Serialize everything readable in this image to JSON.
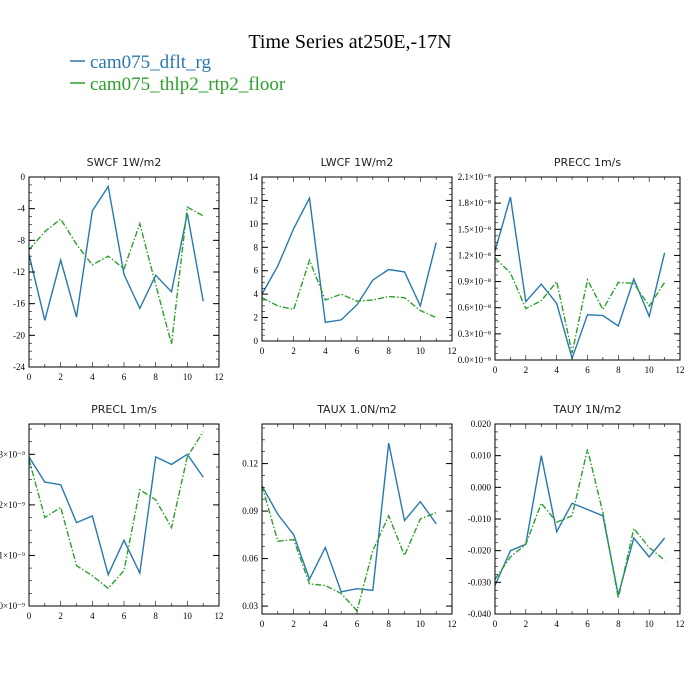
{
  "figure": {
    "title": "Time Series at250E,-17N",
    "legend": [
      {
        "label": "cam075_dflt_rg",
        "color": "#2878b0",
        "dash": "solid"
      },
      {
        "label": "cam075_thlp2_rtp2_floor",
        "color": "#2ca02c",
        "dash": "dashdot"
      }
    ]
  },
  "chart_data": [
    {
      "type": "line",
      "title": "SWCF   1W/m2",
      "xlim": [
        0,
        12
      ],
      "ylim": [
        -24,
        0
      ],
      "xticks": [
        "0",
        "2",
        "4",
        "6",
        "8",
        "10",
        "12"
      ],
      "yticks": [
        "-24",
        "-20",
        "-16",
        "-12",
        "-8",
        "-4",
        "0"
      ],
      "x": [
        0,
        1,
        2,
        3,
        4,
        5,
        6,
        7,
        8,
        9,
        10,
        11
      ],
      "series": [
        {
          "name": "cam075_dflt_rg",
          "values": [
            -9.8,
            -18.1,
            -10.5,
            -17.7,
            -4.3,
            -1.2,
            -12.3,
            -16.6,
            -12.4,
            -14.5,
            -4.6,
            -15.7
          ]
        },
        {
          "name": "cam075_thlp2_rtp2_floor",
          "values": [
            -9.2,
            -6.9,
            -5.3,
            -8.5,
            -11.1,
            -10.0,
            -11.6,
            -5.9,
            -13.6,
            -21.1,
            -3.8,
            -4.9
          ]
        }
      ]
    },
    {
      "type": "line",
      "title": "LWCF   1W/m2",
      "xlim": [
        0,
        12
      ],
      "ylim": [
        0,
        14
      ],
      "xticks": [
        "0",
        "2",
        "4",
        "6",
        "8",
        "10",
        "12"
      ],
      "yticks": [
        "0",
        "2",
        "4",
        "6",
        "8",
        "10",
        "12",
        "14"
      ],
      "x": [
        0,
        1,
        2,
        3,
        4,
        5,
        6,
        7,
        8,
        9,
        10,
        11
      ],
      "series": [
        {
          "name": "cam075_dflt_rg",
          "values": [
            4.0,
            6.4,
            9.6,
            12.2,
            1.6,
            1.8,
            3.1,
            5.2,
            6.1,
            5.9,
            3.0,
            8.4
          ]
        },
        {
          "name": "cam075_thlp2_rtp2_floor",
          "values": [
            3.7,
            3.0,
            2.7,
            6.9,
            3.5,
            4.0,
            3.4,
            3.5,
            3.8,
            3.7,
            2.6,
            2.0
          ]
        }
      ]
    },
    {
      "type": "line",
      "title": "PRECC   1m/s",
      "xlim": [
        0,
        12
      ],
      "ylim": [
        0,
        2.1e-08
      ],
      "xticks": [
        "0",
        "2",
        "4",
        "6",
        "8",
        "10",
        "12"
      ],
      "yticks": [
        "0.0×10⁻⁸",
        "0.3×10⁻⁸",
        "0.6×10⁻⁸",
        "0.9×10⁻⁸",
        "1.2×10⁻⁸",
        "1.5×10⁻⁸",
        "1.8×10⁻⁸",
        "2.1×10⁻⁸"
      ],
      "x": [
        0,
        1,
        2,
        3,
        4,
        5,
        6,
        7,
        8,
        9,
        10,
        11
      ],
      "series": [
        {
          "name": "cam075_dflt_rg",
          "values": [
            1.25e-08,
            1.87e-08,
            6.7e-09,
            8.7e-09,
            6.5e-09,
            2e-10,
            5.2e-09,
            5.1e-09,
            3.9e-09,
            9.3e-09,
            5e-09,
            1.23e-08
          ]
        },
        {
          "name": "cam075_thlp2_rtp2_floor",
          "values": [
            1.17e-08,
            1e-08,
            5.9e-09,
            6.8e-09,
            9e-09,
            8e-10,
            9.2e-09,
            5.8e-09,
            8.9e-09,
            8.8e-09,
            6.2e-09,
            8.9e-09
          ]
        }
      ]
    },
    {
      "type": "line",
      "title": "PRECL   1m/s",
      "xlim": [
        0,
        12
      ],
      "ylim": [
        0,
        3.6e-09
      ],
      "xticks": [
        "0",
        "2",
        "4",
        "6",
        "8",
        "10",
        "12"
      ],
      "yticks": [
        "0×10⁻⁹",
        "1×10⁻⁹",
        "2×10⁻⁹",
        "3×10⁻⁹"
      ],
      "x": [
        0,
        1,
        2,
        3,
        4,
        5,
        6,
        7,
        8,
        9,
        10,
        11
      ],
      "series": [
        {
          "name": "cam075_dflt_rg",
          "values": [
            2.95e-09,
            2.45e-09,
            2.4e-09,
            1.65e-09,
            1.78e-09,
            6.2e-10,
            1.3e-09,
            6.5e-10,
            2.95e-09,
            2.8e-09,
            3e-09,
            2.55e-09
          ]
        },
        {
          "name": "cam075_thlp2_rtp2_floor",
          "values": [
            2.9e-09,
            1.75e-09,
            1.95e-09,
            8e-10,
            6e-10,
            3.5e-10,
            7e-10,
            2.3e-09,
            2.1e-09,
            1.55e-09,
            2.95e-09,
            3.45e-09
          ]
        }
      ]
    },
    {
      "type": "line",
      "title": "TAUX   1.0N/m2",
      "xlim": [
        0,
        12
      ],
      "ylim": [
        0.025,
        0.145
      ],
      "xticks": [
        "0",
        "2",
        "4",
        "6",
        "8",
        "10",
        "12"
      ],
      "yticks": [
        "0.03",
        "0.06",
        "0.09",
        "0.12"
      ],
      "x": [
        0,
        1,
        2,
        3,
        4,
        5,
        6,
        7,
        8,
        9,
        10,
        11
      ],
      "series": [
        {
          "name": "cam075_dflt_rg",
          "values": [
            0.106,
            0.088,
            0.075,
            0.047,
            0.067,
            0.039,
            0.041,
            0.04,
            0.133,
            0.084,
            0.096,
            0.082
          ]
        },
        {
          "name": "cam075_thlp2_rtp2_floor",
          "values": [
            0.106,
            0.071,
            0.072,
            0.044,
            0.043,
            0.038,
            0.027,
            0.065,
            0.087,
            0.062,
            0.085,
            0.089
          ]
        }
      ]
    },
    {
      "type": "line",
      "title": "TAUY   1N/m2",
      "xlim": [
        0,
        12
      ],
      "ylim": [
        -0.04,
        0.02
      ],
      "xticks": [
        "0",
        "2",
        "4",
        "6",
        "8",
        "10",
        "12"
      ],
      "yticks": [
        "-0.040",
        "-0.030",
        "-0.020",
        "-0.010",
        "0.000",
        "0.010",
        "0.020"
      ],
      "x": [
        0,
        1,
        2,
        3,
        4,
        5,
        6,
        7,
        8,
        9,
        10,
        11
      ],
      "series": [
        {
          "name": "cam075_dflt_rg",
          "values": [
            -0.031,
            -0.02,
            -0.018,
            0.01,
            -0.014,
            -0.005,
            -0.007,
            -0.009,
            -0.034,
            -0.016,
            -0.022,
            -0.016
          ]
        },
        {
          "name": "cam075_thlp2_rtp2_floor",
          "values": [
            -0.029,
            -0.022,
            -0.018,
            -0.005,
            -0.011,
            -0.009,
            0.012,
            -0.008,
            -0.035,
            -0.013,
            -0.019,
            -0.023
          ]
        }
      ]
    }
  ]
}
